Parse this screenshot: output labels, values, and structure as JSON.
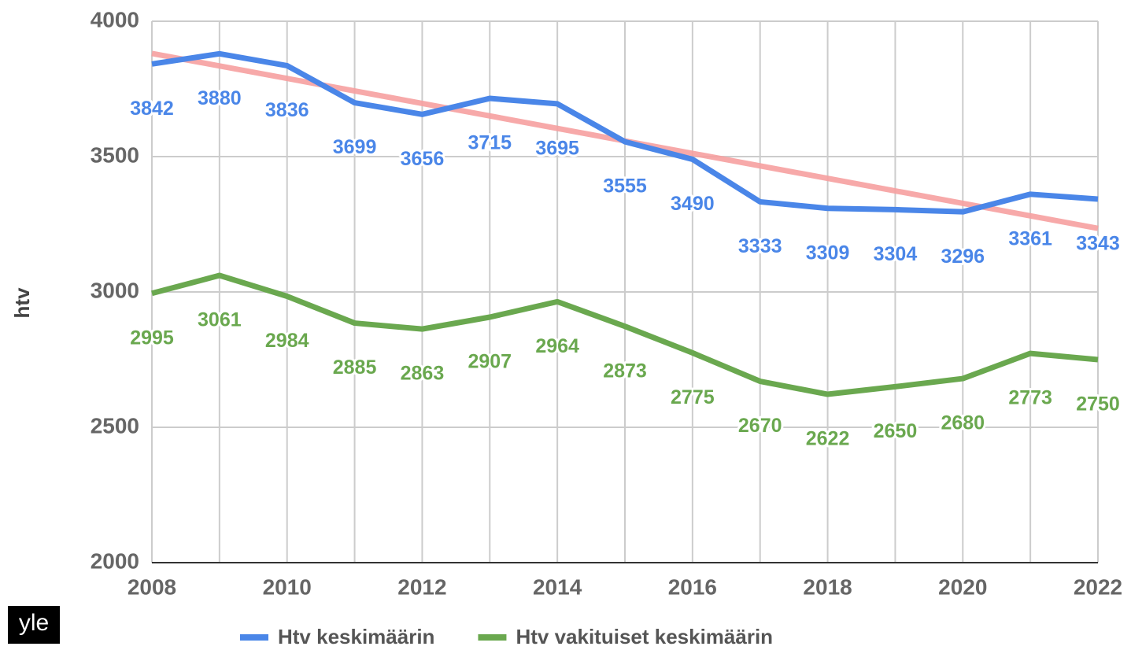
{
  "chart_data": {
    "type": "line",
    "x": [
      2008,
      2009,
      2010,
      2011,
      2012,
      2013,
      2014,
      2015,
      2016,
      2017,
      2018,
      2019,
      2020,
      2021,
      2022
    ],
    "series": [
      {
        "name": "Htv keskimäärin",
        "color": "#4a86e8",
        "values": [
          3842,
          3880,
          3836,
          3699,
          3656,
          3715,
          3695,
          3555,
          3490,
          3333,
          3309,
          3304,
          3296,
          3361,
          3343
        ]
      },
      {
        "name": "Htv vakituiset keskimäärin",
        "color": "#6aa84f",
        "values": [
          2995,
          3061,
          2984,
          2885,
          2863,
          2907,
          2964,
          2873,
          2775,
          2670,
          2622,
          2650,
          2680,
          2773,
          2750
        ]
      }
    ],
    "trend": {
      "color": "#f6a0a0",
      "values": [
        3881,
        3235
      ]
    },
    "ylabel": "htv",
    "xlim": [
      2008,
      2022
    ],
    "xticks": [
      2008,
      2010,
      2012,
      2014,
      2016,
      2018,
      2020,
      2022
    ],
    "ylim": [
      2000,
      4000
    ],
    "yticks": [
      2000,
      2500,
      3000,
      3500,
      4000
    ],
    "grid": true,
    "legend": "bottom",
    "logo": "yle"
  }
}
